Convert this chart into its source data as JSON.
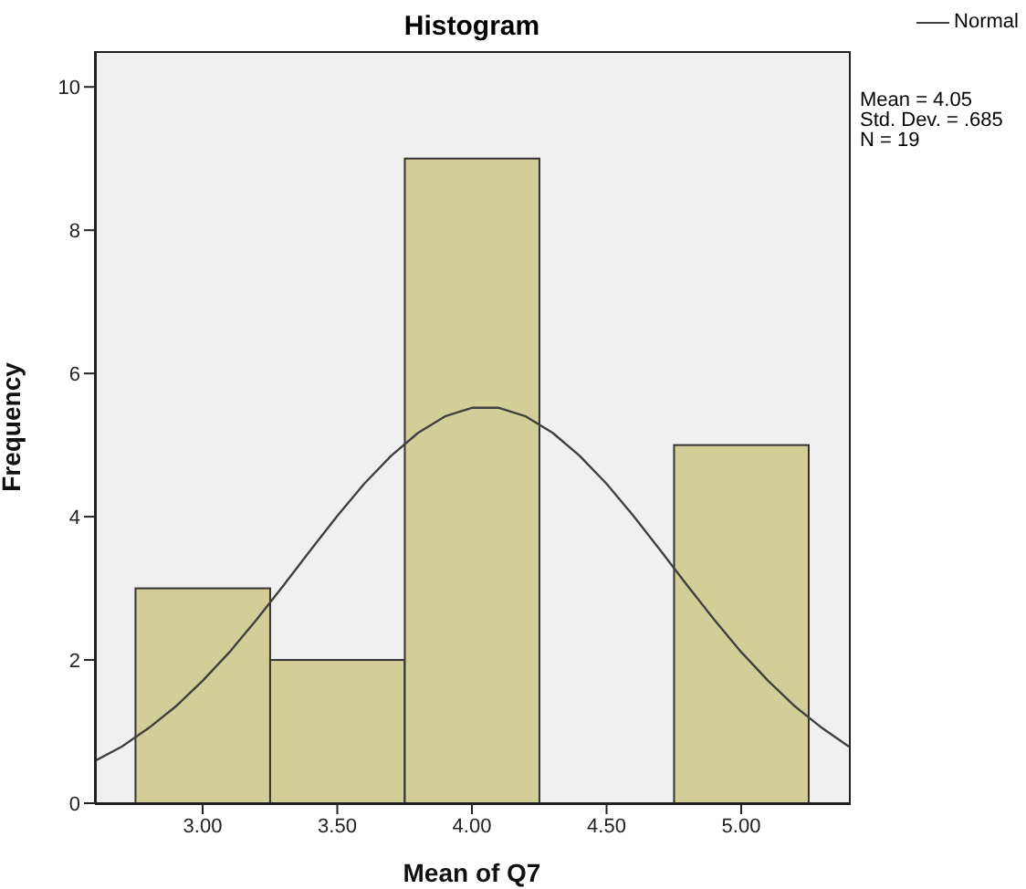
{
  "chart_data": {
    "type": "histogram",
    "title": "Histogram",
    "xlabel": "Mean of Q7",
    "ylabel": "Frequency",
    "bins": [
      2.75,
      3.25,
      3.75,
      4.25,
      4.75,
      5.25
    ],
    "values": [
      3,
      2,
      9,
      0,
      5
    ],
    "color": "#d3ce97",
    "series": [
      {
        "type": "line",
        "name": "Normal",
        "color": "#404040",
        "x": [
          2.6,
          2.7,
          2.8,
          2.9,
          3.0,
          3.1,
          3.2,
          3.3,
          3.4,
          3.5,
          3.6,
          3.7,
          3.8,
          3.9,
          4.0,
          4.1,
          4.2,
          4.3,
          4.4,
          4.5,
          4.6,
          4.7,
          4.8,
          4.9,
          5.0,
          5.1,
          5.2,
          5.3,
          5.4
        ],
        "values": [
          0.59,
          0.79,
          1.05,
          1.35,
          1.71,
          2.11,
          2.56,
          3.04,
          3.53,
          4.01,
          4.46,
          4.85,
          5.17,
          5.4,
          5.52,
          5.52,
          5.4,
          5.17,
          4.85,
          4.46,
          4.01,
          3.53,
          3.04,
          2.56,
          2.11,
          1.71,
          1.35,
          1.05,
          0.79
        ]
      }
    ],
    "xlim": [
      2.6,
      5.4
    ],
    "xticks": [
      {
        "value": 3,
        "label": "3.00"
      },
      {
        "value": 3.5,
        "label": "3.50"
      },
      {
        "value": 4,
        "label": "4.00"
      },
      {
        "value": 4.5,
        "label": "4.50"
      },
      {
        "value": 5,
        "label": "5.00"
      }
    ],
    "ylim": [
      0,
      10.5
    ],
    "yticks": [
      0,
      2,
      4,
      6,
      8,
      10
    ],
    "legend": "top right",
    "marker": "none",
    "annotations": [
      "Mean = 4.05",
      "Std. Dev. = .685",
      "N = 19"
    ]
  }
}
